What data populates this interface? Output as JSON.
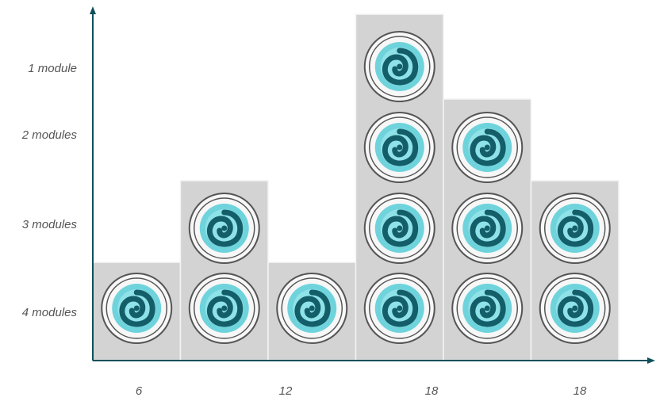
{
  "colors": {
    "axis": "#10505c",
    "block_fill": "#d3d3d3",
    "swirl_light": "#6fd3dc",
    "swirl_dark": "#145e69",
    "ring": "#555555",
    "label": "#555555"
  },
  "row_labels": [
    "1 module",
    "2 modules",
    "3 modules",
    "4 modules"
  ],
  "column_labels": [
    "6",
    "12",
    "18",
    "18"
  ],
  "columns": [
    {
      "modules": 1
    },
    {
      "modules": 2
    },
    {
      "modules": 1
    },
    {
      "modules": 4
    },
    {
      "modules": 3
    },
    {
      "modules": 2
    }
  ],
  "module_icon": "swirl-icon"
}
